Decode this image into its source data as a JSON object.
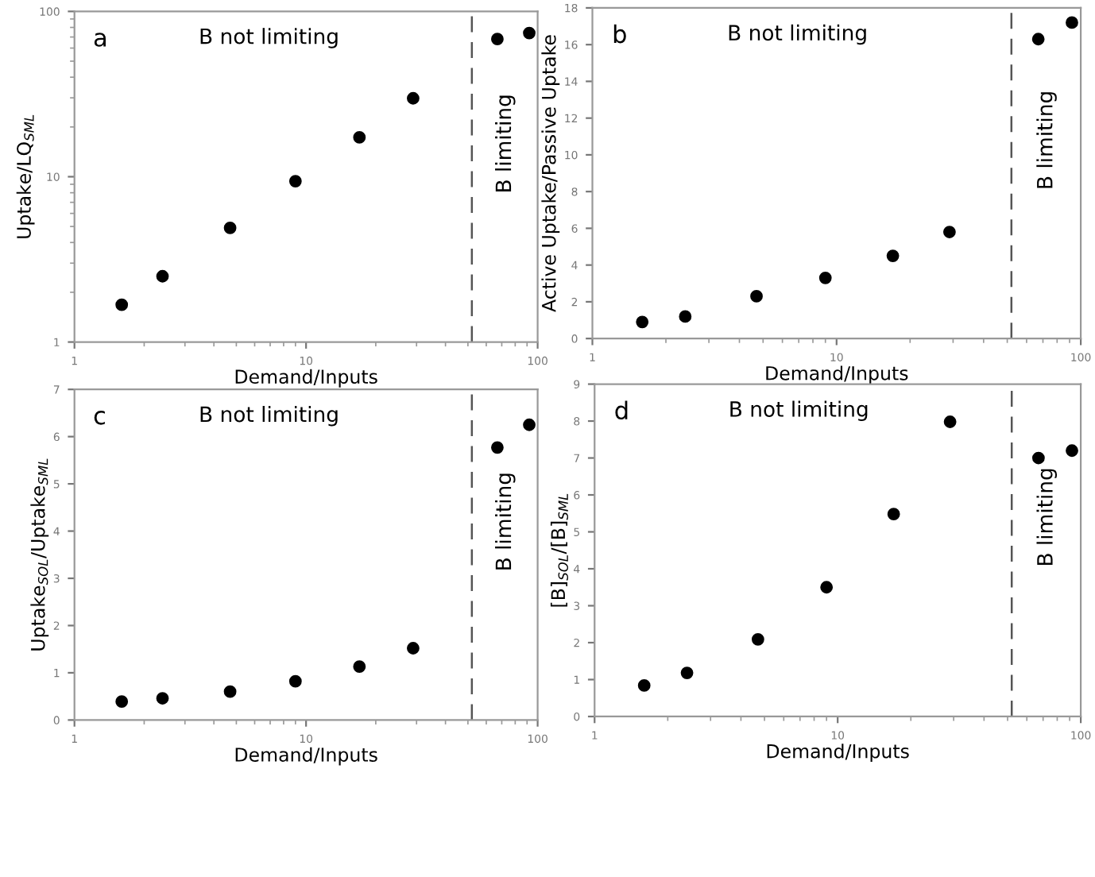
{
  "chart_data": [
    {
      "type": "scatter",
      "xlabel": "Demand/Inputs",
      "ylabel": "Uptake/LQ$_{SML}$",
      "log": "xy",
      "x": [
        1.6,
        2.4,
        4.7,
        9,
        17,
        29,
        67,
        92
      ],
      "values": [
        1.68,
        2.5,
        4.9,
        9.4,
        17.3,
        29.8,
        68,
        74
      ],
      "color": "#000000",
      "marker": "circle",
      "xlim": [
        1,
        100
      ],
      "xticks": [
        1,
        10,
        100
      ],
      "ylim": [
        1,
        100
      ],
      "yticks": [
        1,
        10,
        100
      ],
      "grid": false,
      "legend": false,
      "ref_lines": [
        {
          "axis": "x",
          "value": 52,
          "color": "#555555",
          "line_style": "dashed"
        }
      ],
      "annotations": [
        "a",
        "B not limiting",
        "B limiting"
      ]
    },
    {
      "type": "scatter",
      "xlabel": "Demand/Inputs",
      "ylabel": "Active Uptake/Passive Uptake",
      "log": "x",
      "x": [
        1.6,
        2.4,
        4.7,
        9,
        17,
        29,
        67,
        92
      ],
      "values": [
        0.9,
        1.2,
        2.3,
        3.3,
        4.5,
        5.8,
        16.3,
        17.2
      ],
      "color": "#000000",
      "marker": "circle",
      "xlim": [
        1,
        100
      ],
      "xticks": [
        1,
        10,
        100
      ],
      "ylim": [
        0,
        18
      ],
      "yticks": [
        0,
        2,
        4,
        6,
        8,
        10,
        12,
        14,
        16,
        18
      ],
      "grid": false,
      "legend": false,
      "ref_lines": [
        {
          "axis": "x",
          "value": 52,
          "color": "#555555",
          "line_style": "dashed"
        }
      ],
      "annotations": [
        "b",
        "B not limiting",
        "B limiting"
      ]
    },
    {
      "type": "scatter",
      "xlabel": "Demand/Inputs",
      "ylabel": "Uptake$_{SOL}$/Uptake$_{SML}$",
      "log": "x",
      "x": [
        1.6,
        2.4,
        4.7,
        9,
        17,
        29,
        67,
        92
      ],
      "values": [
        0.39,
        0.46,
        0.6,
        0.82,
        1.13,
        1.52,
        5.77,
        6.25
      ],
      "color": "#000000",
      "marker": "circle",
      "xlim": [
        1,
        100
      ],
      "xticks": [
        1,
        10,
        100
      ],
      "ylim": [
        0,
        7
      ],
      "yticks": [
        0,
        1,
        2,
        3,
        4,
        5,
        6,
        7
      ],
      "grid": false,
      "legend": false,
      "ref_lines": [
        {
          "axis": "x",
          "value": 52,
          "color": "#555555",
          "line_style": "dashed"
        }
      ],
      "annotations": [
        "c",
        "B not limiting",
        "B limiting"
      ]
    },
    {
      "type": "scatter",
      "xlabel": "Demand/Inputs",
      "ylabel": "[B]$_{SOL}$/[B]$_{SML}$",
      "log": "x",
      "x": [
        1.6,
        2.4,
        4.7,
        9,
        17,
        29,
        67,
        92
      ],
      "values": [
        0.84,
        1.18,
        2.09,
        3.5,
        5.48,
        7.98,
        7.0,
        7.2
      ],
      "color": "#000000",
      "marker": "circle",
      "xlim": [
        1,
        100
      ],
      "xticks": [
        1,
        10,
        100
      ],
      "ylim": [
        0,
        9
      ],
      "yticks": [
        0,
        1,
        2,
        3,
        4,
        5,
        6,
        7,
        8,
        9
      ],
      "grid": false,
      "legend": false,
      "ref_lines": [
        {
          "axis": "x",
          "value": 52,
          "color": "#555555",
          "line_style": "dashed"
        }
      ],
      "annotations": [
        "d",
        "B not limiting",
        "B limiting"
      ]
    }
  ]
}
